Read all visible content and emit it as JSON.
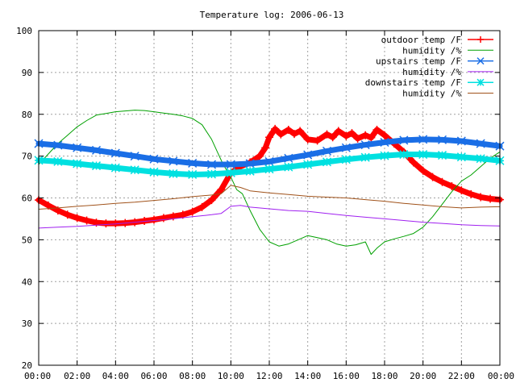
{
  "chart_data": {
    "type": "line",
    "title": "Temperature log: 2006-06-13",
    "xlabel": "",
    "ylabel": "",
    "x_unit": "hour",
    "xlim": [
      0,
      24
    ],
    "ylim": [
      20,
      100
    ],
    "grid": true,
    "legend_position": "top-right",
    "x_ticks": [
      {
        "value": 0,
        "label": "00:00"
      },
      {
        "value": 2,
        "label": "02:00"
      },
      {
        "value": 4,
        "label": "04:00"
      },
      {
        "value": 6,
        "label": "06:00"
      },
      {
        "value": 8,
        "label": "08:00"
      },
      {
        "value": 10,
        "label": "10:00"
      },
      {
        "value": 12,
        "label": "12:00"
      },
      {
        "value": 14,
        "label": "14:00"
      },
      {
        "value": 16,
        "label": "16:00"
      },
      {
        "value": 18,
        "label": "18:00"
      },
      {
        "value": 20,
        "label": "20:00"
      },
      {
        "value": 22,
        "label": "22:00"
      },
      {
        "value": 24,
        "label": "00:00"
      }
    ],
    "y_ticks": [
      20,
      30,
      40,
      50,
      60,
      70,
      80,
      90,
      100
    ],
    "series": [
      {
        "name": "outdoor temp /F",
        "color": "#ff0000",
        "marker": "plus",
        "x": [
          0,
          0.5,
          1,
          1.5,
          2,
          2.5,
          3,
          3.5,
          4,
          4.5,
          5,
          5.5,
          6,
          6.5,
          7,
          7.5,
          8,
          8.5,
          9,
          9.5,
          10,
          10.5,
          11,
          11.5,
          11.8,
          12,
          12.3,
          12.6,
          13,
          13.3,
          13.6,
          14,
          14.5,
          15,
          15.3,
          15.6,
          16,
          16.3,
          16.6,
          17,
          17.3,
          17.6,
          18,
          18.5,
          19,
          19.5,
          20,
          20.5,
          21,
          21.5,
          22,
          22.5,
          23,
          23.5,
          24
        ],
        "y": [
          59.5,
          58.2,
          57.0,
          56.0,
          55.2,
          54.6,
          54.1,
          53.9,
          53.9,
          54.0,
          54.2,
          54.5,
          54.8,
          55.2,
          55.6,
          56.0,
          56.7,
          57.8,
          59.5,
          62.0,
          66.0,
          67.5,
          68.5,
          70.0,
          72.0,
          74.5,
          76.5,
          75.2,
          76.3,
          75.3,
          76.0,
          74.0,
          73.7,
          75.2,
          74.5,
          76.0,
          74.8,
          75.5,
          74.2,
          75.0,
          74.4,
          76.3,
          75.0,
          73.0,
          71.0,
          68.5,
          66.5,
          65.0,
          63.8,
          62.8,
          61.8,
          60.9,
          60.2,
          59.8,
          59.6
        ]
      },
      {
        "name": "humidity /%",
        "color": "#00a000",
        "marker": "none",
        "x": [
          0,
          0.5,
          1,
          1.5,
          2,
          2.5,
          3,
          3.5,
          4,
          4.5,
          5,
          5.5,
          6,
          6.5,
          7,
          7.5,
          8,
          8.5,
          9,
          9.3,
          9.6,
          10,
          10.3,
          10.6,
          11,
          11.5,
          12,
          12.5,
          13,
          13.5,
          14,
          14.5,
          15,
          15.5,
          16,
          16.5,
          17,
          17.3,
          17.6,
          18,
          18.5,
          19,
          19.5,
          20,
          20.5,
          21,
          21.5,
          22,
          22.5,
          23,
          23.5,
          24
        ],
        "y": [
          68.0,
          70.5,
          73.0,
          75.0,
          77.0,
          78.5,
          79.8,
          80.2,
          80.6,
          80.8,
          81.0,
          80.9,
          80.6,
          80.3,
          80.0,
          79.6,
          79.0,
          77.5,
          74.0,
          71.0,
          68.0,
          65.0,
          62.0,
          61.0,
          57.0,
          52.5,
          49.5,
          48.5,
          49.0,
          50.0,
          51.0,
          50.5,
          50.0,
          49.0,
          48.5,
          48.8,
          49.5,
          46.5,
          48.0,
          49.5,
          50.2,
          50.8,
          51.5,
          53.0,
          55.5,
          58.5,
          61.5,
          64.0,
          65.5,
          67.5,
          69.5,
          71.0
        ]
      },
      {
        "name": "upstairs temp /F",
        "color": "#1a6ee6",
        "marker": "cross",
        "x": [
          0,
          1,
          2,
          3,
          4,
          5,
          6,
          7,
          8,
          9,
          10,
          11,
          12,
          13,
          14,
          15,
          16,
          17,
          18,
          19,
          20,
          21,
          22,
          23,
          24
        ],
        "y": [
          73.0,
          72.6,
          72.0,
          71.4,
          70.7,
          70.0,
          69.3,
          68.8,
          68.3,
          68.0,
          68.0,
          68.2,
          68.7,
          69.5,
          70.3,
          71.2,
          72.0,
          72.7,
          73.3,
          73.8,
          74.0,
          73.9,
          73.6,
          73.0,
          72.4
        ]
      },
      {
        "name": "humidity /%",
        "color": "#a020f0",
        "marker": "none",
        "x": [
          0,
          1,
          2,
          3,
          4,
          5,
          6,
          7,
          8,
          9,
          9.5,
          10,
          10.5,
          11,
          12,
          13,
          14,
          15,
          16,
          17,
          18,
          19,
          20,
          21,
          22,
          23,
          24
        ],
        "y": [
          52.8,
          53.0,
          53.2,
          53.5,
          53.8,
          54.2,
          54.6,
          55.0,
          55.5,
          56.0,
          56.3,
          58.0,
          58.2,
          57.8,
          57.4,
          57.0,
          56.8,
          56.3,
          55.8,
          55.4,
          55.0,
          54.6,
          54.2,
          53.9,
          53.6,
          53.4,
          53.3
        ]
      },
      {
        "name": "downstairs temp /F",
        "color": "#00e0e0",
        "marker": "star",
        "x": [
          0,
          1,
          2,
          3,
          4,
          5,
          6,
          7,
          8,
          9,
          10,
          11,
          12,
          13,
          14,
          15,
          16,
          17,
          18,
          19,
          20,
          21,
          22,
          23,
          24
        ],
        "y": [
          69.0,
          68.7,
          68.2,
          67.7,
          67.2,
          66.7,
          66.2,
          65.8,
          65.6,
          65.7,
          66.0,
          66.4,
          66.9,
          67.4,
          68.0,
          68.6,
          69.2,
          69.7,
          70.1,
          70.4,
          70.4,
          70.2,
          69.8,
          69.4,
          68.9
        ]
      },
      {
        "name": "humidity /%",
        "color": "#a0521a",
        "marker": "none",
        "x": [
          0,
          1,
          2,
          3,
          4,
          5,
          6,
          7,
          8,
          9,
          9.5,
          10,
          10.5,
          11,
          12,
          13,
          14,
          15,
          16,
          17,
          18,
          19,
          20,
          21,
          22,
          23,
          24
        ],
        "y": [
          57.3,
          57.6,
          58.0,
          58.3,
          58.7,
          59.0,
          59.4,
          59.8,
          60.3,
          60.7,
          61.0,
          63.0,
          62.5,
          61.7,
          61.2,
          60.8,
          60.4,
          60.2,
          60.0,
          59.6,
          59.2,
          58.7,
          58.3,
          57.9,
          57.6,
          57.8,
          57.9
        ]
      }
    ]
  }
}
